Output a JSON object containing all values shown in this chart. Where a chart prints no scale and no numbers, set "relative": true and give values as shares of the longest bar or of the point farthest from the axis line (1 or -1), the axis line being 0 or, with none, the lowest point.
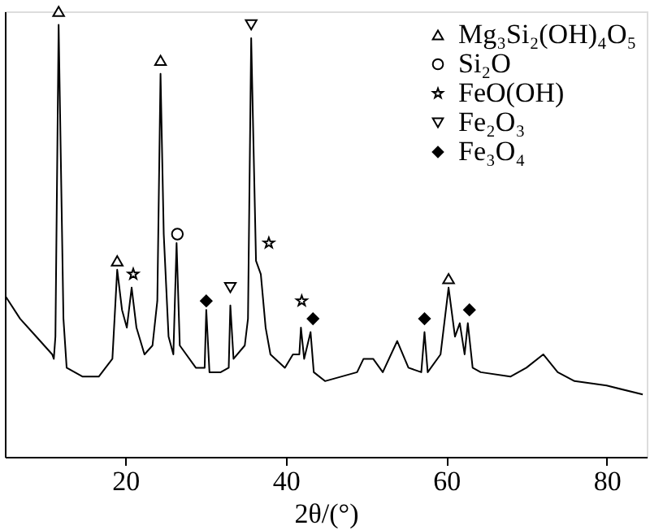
{
  "chart_data": {
    "type": "line",
    "xlabel": "2θ/(°)",
    "xlim": [
      5,
      85
    ],
    "xticks": [
      20,
      40,
      60,
      80
    ],
    "relative": true,
    "tick_labels": "x",
    "grid": false,
    "legend": "top right",
    "series": [
      {
        "color": "#000000",
        "marker": "none",
        "line_style": "solid",
        "x": [
          5.1,
          6.9,
          8.9,
          10.9,
          11.1,
          11.3,
          11.7,
          12.3,
          12.7,
          14.7,
          16.7,
          18.4,
          19.0,
          19.6,
          20.2,
          20.8,
          21.4,
          22.4,
          23.4,
          24.0,
          24.4,
          24.8,
          25.4,
          26.0,
          26.4,
          26.8,
          28.8,
          29.9,
          30.1,
          30.5,
          31.9,
          32.9,
          33.1,
          33.5,
          34.9,
          35.3,
          35.7,
          36.3,
          36.9,
          37.5,
          38.1,
          39.9,
          40.9,
          41.7,
          41.9,
          42.3,
          43.1,
          43.5,
          44.9,
          48.9,
          49.7,
          50.9,
          52.1,
          53.9,
          55.3,
          56.9,
          57.3,
          57.7,
          59.3,
          60.3,
          61.1,
          61.7,
          62.3,
          62.7,
          63.3,
          64.3,
          68.0,
          70.0,
          72.1,
          73.9,
          76.0,
          80.0,
          84.5
        ],
        "values": [
          0.36,
          0.31,
          0.27,
          0.23,
          0.22,
          0.27,
          0.97,
          0.31,
          0.2,
          0.18,
          0.18,
          0.22,
          0.42,
          0.33,
          0.29,
          0.38,
          0.29,
          0.23,
          0.25,
          0.35,
          0.86,
          0.5,
          0.27,
          0.23,
          0.48,
          0.25,
          0.2,
          0.2,
          0.33,
          0.19,
          0.19,
          0.2,
          0.34,
          0.22,
          0.25,
          0.31,
          0.94,
          0.44,
          0.41,
          0.29,
          0.23,
          0.2,
          0.23,
          0.23,
          0.29,
          0.22,
          0.28,
          0.19,
          0.17,
          0.19,
          0.22,
          0.22,
          0.19,
          0.26,
          0.2,
          0.19,
          0.28,
          0.19,
          0.23,
          0.38,
          0.27,
          0.3,
          0.23,
          0.3,
          0.2,
          0.19,
          0.18,
          0.2,
          0.23,
          0.19,
          0.17,
          0.16,
          0.14
        ]
      },
      {
        "type": "scatter",
        "name": "Mg₃Si₂(OH)₄O₅",
        "color": "#000000",
        "marker": "triangle",
        "x": [
          11.7,
          19.0,
          24.4,
          60.3
        ],
        "values": [
          1.0,
          0.44,
          0.89,
          0.4
        ]
      },
      {
        "type": "scatter",
        "name": "Si₂O",
        "color": "#000000",
        "marker": "circle",
        "x": [
          26.5
        ],
        "values": [
          0.5
        ]
      },
      {
        "type": "scatter",
        "name": "FeO(OH)",
        "color": "#000000",
        "marker": "star",
        "x": [
          21.0,
          37.9,
          42.0
        ],
        "values": [
          0.41,
          0.48,
          0.35
        ]
      },
      {
        "type": "scatter",
        "name": "Fe₂O₃",
        "color": "#000000",
        "marker": "triangle-down",
        "x": [
          33.1,
          35.7
        ],
        "values": [
          0.38,
          0.97
        ]
      },
      {
        "type": "scatter",
        "name": "Fe₃O₄",
        "color": "#000000",
        "marker": "diamond",
        "x": [
          30.1,
          43.4,
          57.3,
          62.9
        ],
        "values": [
          0.35,
          0.31,
          0.31,
          0.33
        ]
      }
    ]
  }
}
